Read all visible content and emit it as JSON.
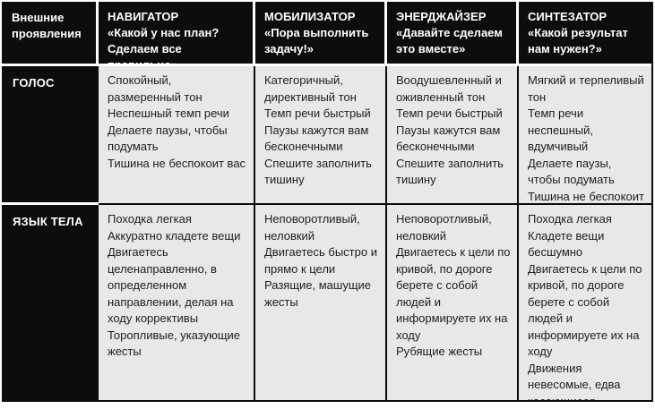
{
  "colors": {
    "table_black": "#0d0d0d",
    "header_text": "#ffffff",
    "cell_background": "#e8e8e8",
    "cell_text": "#1e1e1e",
    "separator_white": "#ffffff"
  },
  "table": {
    "corner_title": "Внешние\nпроявления",
    "columns": [
      {
        "name": "НАВИГАТОР",
        "motto": "«Какой у нас план? Сделаем все правильно»"
      },
      {
        "name": "МОБИЛИЗАТОР",
        "motto": "«Пора выполнить задачу!»"
      },
      {
        "name": "ЭНЕРДЖАЙЗЕР",
        "motto": "«Давайте сделаем это вместе»"
      },
      {
        "name": "СИНТЕЗАТОР",
        "motto": "«Какой результат нам нужен?»"
      }
    ],
    "rows": [
      {
        "label": "ГОЛОС",
        "cells": [
          [
            "Спокойный, размеренный тон",
            "Неспешный темп речи",
            "Делаете паузы, чтобы подумать",
            "Тишина не беспокоит вас"
          ],
          [
            "Категоричный, директивный тон",
            "Темп речи быстрый",
            "Паузы кажутся вам бесконечными",
            "Спешите заполнить тишину"
          ],
          [
            "Воодушевленный и оживленный тон",
            "Темп речи быстрый",
            "Паузы кажутся вам бесконечными",
            "Спешите заполнить тишину"
          ],
          [
            "Мягкий и терпеливый тон",
            "Темп речи неспешный, вдумчивый",
            "Делаете паузы, чтобы подумать",
            "Тишина не беспокоит вас"
          ]
        ]
      },
      {
        "label": "ЯЗЫК ТЕЛА",
        "cells": [
          [
            "Походка легкая",
            "Аккуратно кладете вещи",
            "Двигаетесь целенаправленно, в определенном направлении, делая на ходу коррективы",
            "Торопливые, указующие жесты"
          ],
          [
            "Неповоротливый, неловкий",
            "Двигаетесь быстро и прямо к цели",
            "Разящие, машущие жесты"
          ],
          [
            "Неповоротливый, неловкий",
            "Двигаетесь к цели по кривой, по дороге берете с собой людей и информируете их на ходу",
            "Рубящие жесты"
          ],
          [
            "Походка легкая",
            "Кладете вещи бесшумно",
            "Двигаетесь к цели по кривой, по дороге берете с собой людей и информируете их на ходу",
            "Движения невесомые, едва касающиеся предметов"
          ]
        ]
      }
    ]
  }
}
